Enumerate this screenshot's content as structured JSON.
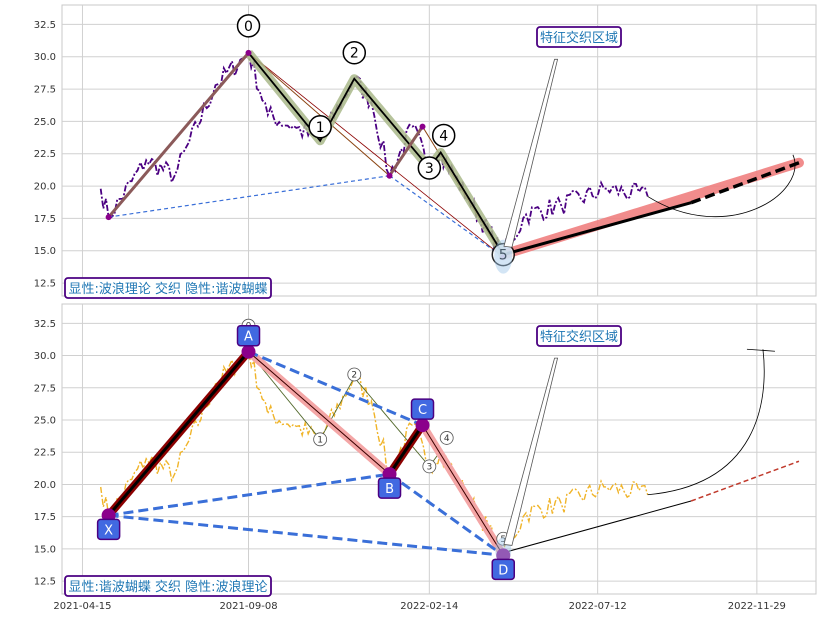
{
  "chart_data": [
    {
      "type": "line",
      "panel": "top",
      "ylim": [
        11.5,
        34.0
      ],
      "yticks": [
        "12.5",
        "15.0",
        "17.5",
        "20.0",
        "22.5",
        "25.0",
        "27.5",
        "30.0",
        "32.5"
      ],
      "price_color": "#4b0082",
      "wave_points": [
        {
          "label": "0",
          "date": "2021-09-08",
          "value": 30.3
        },
        {
          "label": "1",
          "date": "2021-11-10",
          "value": 23.5
        },
        {
          "label": "2",
          "date": "2021-12-10",
          "value": 28.3
        },
        {
          "label": "3",
          "date": "2022-02-14",
          "value": 21.4
        },
        {
          "label": "4",
          "date": "2022-02-24",
          "value": 22.6
        },
        {
          "label": "5",
          "date": "2022-04-20",
          "value": 14.7
        }
      ],
      "harmonic_points": [
        {
          "label": "X",
          "date": "2021-05-08",
          "value": 17.6
        },
        {
          "label": "A",
          "date": "2021-09-08",
          "value": 30.3
        },
        {
          "label": "B",
          "date": "2022-01-10",
          "value": 20.8
        },
        {
          "label": "C",
          "date": "2022-02-08",
          "value": 24.6
        },
        {
          "label": "D",
          "date": "2022-04-20",
          "value": 14.5
        }
      ],
      "projection": {
        "start": {
          "date": "2022-04-20",
          "value": 14.7
        },
        "end": {
          "date": "2023-01-05",
          "value": 21.8
        }
      },
      "annotation": "特征交织区域",
      "legend_text": "显性:波浪理论 交织 隐性:谐波蝴蝶"
    },
    {
      "type": "line",
      "panel": "bottom",
      "ylim": [
        11.5,
        34.0
      ],
      "yticks": [
        "12.5",
        "15.0",
        "17.5",
        "20.0",
        "22.5",
        "25.0",
        "27.5",
        "30.0",
        "32.5"
      ],
      "price_color": "#f0b429",
      "xticks": [
        "2021-04-15",
        "2021-09-08",
        "2022-02-14",
        "2022-07-12",
        "2022-11-29"
      ],
      "harmonic_labels": [
        "X",
        "A",
        "B",
        "C",
        "D"
      ],
      "wave_labels": [
        "0",
        "1",
        "2",
        "3",
        "4",
        "5"
      ],
      "annotation": "特征交织区域",
      "legend_text": "显性:谐波蝴蝶 交织 隐性:波浪理论"
    }
  ],
  "colors": {
    "grid": "#d0d0d0",
    "frame": "#c8c8c8",
    "box_border": "#4b0082",
    "box_text": "#1f77b4",
    "point_fill": "#4169e1",
    "harmonic_dash": "#3a6fd8"
  }
}
